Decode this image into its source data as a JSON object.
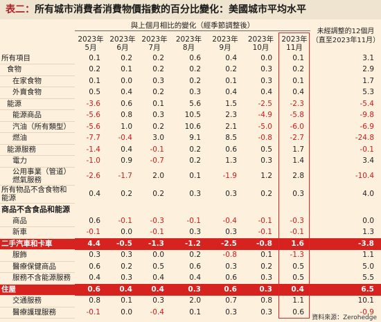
{
  "title_prefix": "表二：",
  "title_rest": "所有城市消費者消費物價指數的百分比變化：美國城市平均水平",
  "header": {
    "group_label": "與上個月相比的變化（經季節調整後）",
    "months": [
      [
        "2023年",
        "5月"
      ],
      [
        "2023年",
        "6月"
      ],
      [
        "2023年",
        "7月"
      ],
      [
        "2023年",
        "8月"
      ],
      [
        "2023年",
        "9月"
      ],
      [
        "2023年",
        "10月"
      ],
      [
        "2023年",
        "11月"
      ]
    ],
    "yoy_label_1": "未經調整的12個月",
    "yoy_label_2": "（直至2023年11月）"
  },
  "rows": [
    {
      "label": "所有項目",
      "indent": 0,
      "values": [
        "0.1",
        "0.2",
        "0.2",
        "0.6",
        "0.4",
        "0.0",
        "0.1"
      ],
      "yoy": "3.1"
    },
    {
      "label": "食物",
      "indent": 1,
      "values": [
        "0.2",
        "0.1",
        "0.2",
        "0.2",
        "0.2",
        "0.3",
        "0.2"
      ],
      "yoy": "2.9"
    },
    {
      "label": "在家食物",
      "indent": 2,
      "values": [
        "0.1",
        "0.0",
        "0.3",
        "0.2",
        "0.1",
        "0.3",
        "0.1"
      ],
      "yoy": "1.7"
    },
    {
      "label": "外賣食物",
      "indent": 2,
      "values": [
        "0.5",
        "0.4",
        "0.2",
        "0.3",
        "0.4",
        "0.4",
        "0.4"
      ],
      "yoy": "5.3"
    },
    {
      "label": "能源",
      "indent": 1,
      "values": [
        "-3.6",
        "0.6",
        "0.1",
        "5.6",
        "1.5",
        "-2.5",
        "-2.3"
      ],
      "yoy": "-5.4"
    },
    {
      "label": "能源商品",
      "indent": 2,
      "values": [
        "-5.6",
        "0.8",
        "0.3",
        "10.5",
        "2.3",
        "-4.9",
        "-5.8"
      ],
      "yoy": "-9.8"
    },
    {
      "label": "汽油（所有類型）",
      "indent": 2,
      "values": [
        "-5.6",
        "1.0",
        "0.2",
        "10.6",
        "2.1",
        "-5.0",
        "-6.0"
      ],
      "yoy": "-6.9"
    },
    {
      "label": "燃油",
      "indent": 2,
      "values": [
        "-7.7",
        "-0.4",
        "3.0",
        "9.1",
        "8.5",
        "-0.8",
        "-2.7"
      ],
      "yoy": "-24.8"
    },
    {
      "label": "能源服務",
      "indent": 1,
      "values": [
        "-1.4",
        "0.4",
        "-0.1",
        "0.2",
        "0.6",
        "0.5",
        "1.7"
      ],
      "yoy": "-0.1"
    },
    {
      "label": "電力",
      "indent": 2,
      "values": [
        "-1.0",
        "0.9",
        "-0.7",
        "0.2",
        "1.3",
        "0.3",
        "1.4"
      ],
      "yoy": "3.4"
    },
    {
      "label": "公用事業（管道）燃氣服務",
      "indent": 2,
      "tall": true,
      "line1": "公用事業（管道）",
      "line2": "燃氣服務",
      "values": [
        "-2.6",
        "-1.7",
        "2.0",
        "0.1",
        "-1.9",
        "1.2",
        "2.8"
      ],
      "yoy": "-10.4"
    },
    {
      "label": "所有物品不含食物和能源",
      "indent": 0,
      "tall": true,
      "line1": "所有物品不含食物和",
      "line2": "能源",
      "values": [
        "0.4",
        "0.2",
        "0.2",
        "0.3",
        "0.3",
        "0.2",
        "0.3"
      ],
      "yoy": "4.0"
    },
    {
      "label": "商品不含食品和能源",
      "indent": 0,
      "section": true,
      "values": [],
      "yoy": ""
    },
    {
      "label": "商品",
      "indent": 2,
      "values": [
        "0.6",
        "-0.1",
        "-0.3",
        "-0.1",
        "-0.4",
        "-0.1",
        "-0.3"
      ],
      "yoy": "0.0"
    },
    {
      "label": "新車",
      "indent": 2,
      "values": [
        "-0.1",
        "0.0",
        "-0.1",
        "0.3",
        "0.3",
        "-0.1",
        "-0.1"
      ],
      "yoy": "1.3"
    },
    {
      "label": "二手汽車和卡車",
      "indent": 0,
      "highlight": true,
      "values": [
        "4.4",
        "-0.5",
        "-1.3",
        "-1.2",
        "-2.5",
        "-0.8",
        "1.6"
      ],
      "yoy": "-3.8"
    },
    {
      "label": "服飾",
      "indent": 2,
      "values": [
        "0.3",
        "0.3",
        "0.0",
        "0.2",
        "-0.8",
        "0.1",
        "-1.3"
      ],
      "yoy": "1.1"
    },
    {
      "label": "醫療保健商品",
      "indent": 2,
      "values": [
        "0.6",
        "0.2",
        "0.5",
        "0.6",
        "0.3",
        "0.2",
        "0.5"
      ],
      "yoy": "5.0"
    },
    {
      "label": "服務不含能源服務",
      "indent": 2,
      "values": [
        "0.4",
        "0.3",
        "0.4",
        "0.4",
        "0.6",
        "0.3",
        "0.5"
      ],
      "yoy": "5.5"
    },
    {
      "label": "住屋",
      "indent": 0,
      "highlight": true,
      "values": [
        "0.6",
        "0.4",
        "0.4",
        "0.3",
        "0.6",
        "0.3",
        "0.4"
      ],
      "yoy": "6.5"
    },
    {
      "label": "交通服務",
      "indent": 2,
      "values": [
        "0.8",
        "0.1",
        "0.3",
        "2.0",
        "0.7",
        "0.8",
        "1.1"
      ],
      "yoy": "10.1"
    },
    {
      "label": "醫療護理服務",
      "indent": 2,
      "values": [
        "-0.1",
        "0.0",
        "-0.4",
        "0.1",
        "0.3",
        "0.3",
        "0.6"
      ],
      "yoy": "-0.9"
    }
  ],
  "source": "資料來源：Zerohedge",
  "colors": {
    "accent_red": "#d7231f",
    "background": "#fdf0dd",
    "negative": "#d11a1a"
  }
}
